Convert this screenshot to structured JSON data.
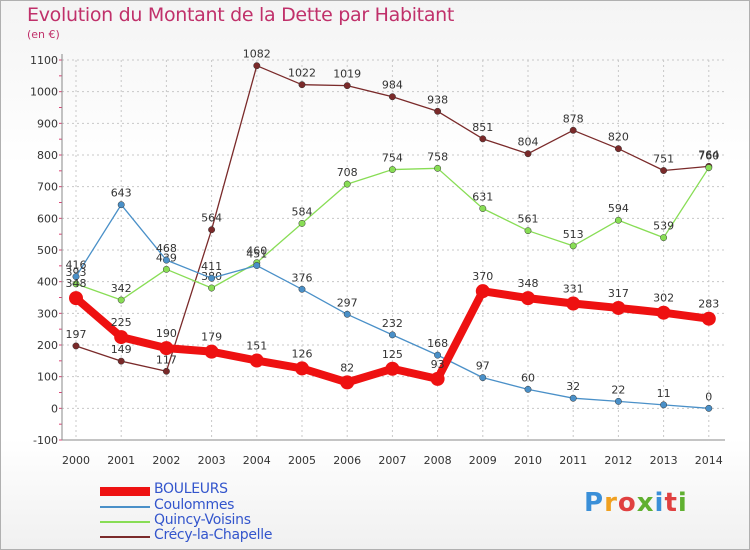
{
  "title": "Evolution du Montant de la Dette par Habitant",
  "unit": "(en €)",
  "logo": "Proxiti",
  "chart_data": {
    "type": "line",
    "x": [
      "2000",
      "2001",
      "2002",
      "2003",
      "2004",
      "2005",
      "2006",
      "2007",
      "2008",
      "2009",
      "2010",
      "2011",
      "2012",
      "2013",
      "2014"
    ],
    "ylim": [
      -100,
      1100
    ],
    "yticks": [
      -100,
      0,
      100,
      200,
      300,
      400,
      500,
      600,
      700,
      800,
      900,
      1000,
      1100
    ],
    "grid": true,
    "legend": "bottom-left",
    "series": [
      {
        "name": "BOULEURS",
        "color": "#ee1111",
        "values": [
          348,
          225,
          190,
          179,
          151,
          126,
          82,
          125,
          93,
          370,
          348,
          331,
          317,
          302,
          283
        ]
      },
      {
        "name": "Coulommes",
        "color": "#4a90c8",
        "values": [
          416,
          643,
          468,
          411,
          451,
          376,
          297,
          232,
          168,
          97,
          60,
          32,
          22,
          11,
          0
        ]
      },
      {
        "name": "Quincy-Voisins",
        "color": "#88dd55",
        "values": [
          393,
          342,
          439,
          380,
          460,
          584,
          708,
          754,
          758,
          631,
          561,
          513,
          594,
          539,
          760
        ]
      },
      {
        "name": "Crécy-la-Chapelle",
        "color": "#7a2a2a",
        "values": [
          197,
          149,
          117,
          564,
          1082,
          1022,
          1019,
          984,
          938,
          851,
          804,
          878,
          820,
          751,
          764
        ]
      }
    ]
  }
}
